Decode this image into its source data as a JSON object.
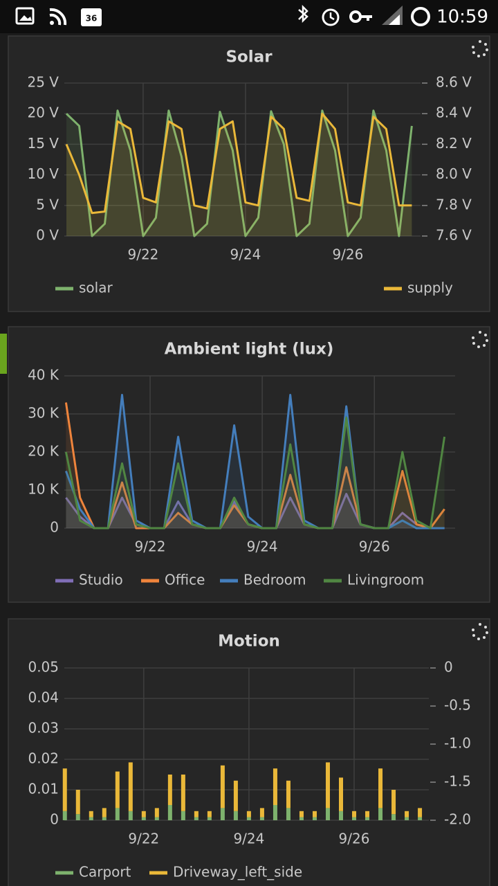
{
  "status_bar": {
    "badge": "36",
    "time": "10:59"
  },
  "chart_data": [
    {
      "type": "line",
      "title": "Solar",
      "x": [
        20.5,
        20.75,
        21,
        21.25,
        21.5,
        21.75,
        22,
        22.25,
        22.5,
        22.75,
        23,
        23.25,
        23.5,
        23.75,
        24,
        24.25,
        24.5,
        24.75,
        25,
        25.25,
        25.5,
        25.75,
        26,
        26.25,
        26.5,
        26.75,
        27,
        27.25
      ],
      "xlim": [
        20.46,
        27.42
      ],
      "xticks": [
        {
          "value": 22,
          "label": "9/22"
        },
        {
          "value": 24,
          "label": "9/24"
        },
        {
          "value": 26,
          "label": "9/26"
        }
      ],
      "ylim": [
        0,
        25
      ],
      "yticks": [
        {
          "value": 0,
          "label": "0 V"
        },
        {
          "value": 5,
          "label": "5 V"
        },
        {
          "value": 10,
          "label": "10 V"
        },
        {
          "value": 15,
          "label": "15 V"
        },
        {
          "value": 20,
          "label": "20 V"
        },
        {
          "value": 25,
          "label": "25 V"
        }
      ],
      "y2lim": [
        7.6,
        8.6
      ],
      "y2ticks": [
        {
          "value": 7.6,
          "label": "7.6 V"
        },
        {
          "value": 7.8,
          "label": "7.8 V"
        },
        {
          "value": 8.0,
          "label": "8.0 V"
        },
        {
          "value": 8.2,
          "label": "8.2 V"
        },
        {
          "value": 8.4,
          "label": "8.4 V"
        },
        {
          "value": 8.6,
          "label": "8.6 V"
        }
      ],
      "grid": true,
      "series": [
        {
          "name": "solar",
          "color": "#7eb26d",
          "values": [
            20,
            18,
            0,
            2,
            20.5,
            14,
            0,
            3,
            20.5,
            13,
            0,
            2,
            20.3,
            14,
            0,
            3,
            20.4,
            15,
            0,
            2,
            20.5,
            14,
            0,
            3,
            20.5,
            14,
            0,
            18
          ]
        },
        {
          "name": "supply",
          "color": "#eab839",
          "axis": "y2",
          "values": [
            8.2,
            8.0,
            7.75,
            7.76,
            8.35,
            8.3,
            7.85,
            7.82,
            8.35,
            8.3,
            7.8,
            7.78,
            8.3,
            8.35,
            7.82,
            7.8,
            8.38,
            8.3,
            7.85,
            7.83,
            8.4,
            8.3,
            7.82,
            7.8,
            8.38,
            8.3,
            7.8,
            7.8
          ]
        }
      ]
    },
    {
      "type": "line",
      "title": "Ambient light (lux)",
      "x": [
        20.5,
        20.75,
        21,
        21.25,
        21.5,
        21.75,
        22,
        22.25,
        22.5,
        22.75,
        23,
        23.25,
        23.5,
        23.75,
        24,
        24.25,
        24.5,
        24.75,
        25,
        25.25,
        25.5,
        25.75,
        26,
        26.25,
        26.5,
        26.75,
        27,
        27.25
      ],
      "xlim": [
        20.47,
        27.44
      ],
      "xticks": [
        {
          "value": 22,
          "label": "9/22"
        },
        {
          "value": 24,
          "label": "9/24"
        },
        {
          "value": 26,
          "label": "9/26"
        }
      ],
      "ylim": [
        0,
        40000
      ],
      "yticks": [
        0,
        {
          "value": 10000,
          "label": "10 K"
        },
        {
          "value": 20000,
          "label": "20 K"
        },
        {
          "value": 30000,
          "label": "30 K"
        },
        {
          "value": 40000,
          "label": "40 K"
        }
      ],
      "grid": true,
      "series": [
        {
          "name": "Studio",
          "color": "#806eb7",
          "values": [
            8000,
            3000,
            0,
            0,
            8000,
            1000,
            0,
            0,
            7000,
            1000,
            0,
            0,
            7000,
            1000,
            0,
            0,
            8000,
            1000,
            0,
            0,
            9000,
            1000,
            0,
            0,
            4000,
            1000,
            0,
            0
          ]
        },
        {
          "name": "Office",
          "color": "#ef843c",
          "values": [
            33000,
            8000,
            0,
            0,
            12000,
            0,
            0,
            0,
            4000,
            1000,
            0,
            0,
            6000,
            1000,
            0,
            0,
            14000,
            1000,
            0,
            0,
            16000,
            1000,
            0,
            0,
            15000,
            1000,
            0,
            5000
          ]
        },
        {
          "name": "Bedroom",
          "color": "#447ebc",
          "values": [
            15000,
            5000,
            0,
            0,
            35000,
            2000,
            0,
            0,
            24000,
            2000,
            0,
            0,
            27000,
            3000,
            0,
            0,
            35000,
            2000,
            0,
            0,
            32000,
            1000,
            0,
            0,
            2000,
            0,
            0,
            0
          ]
        },
        {
          "name": "Livingroom",
          "color": "#508642",
          "values": [
            20000,
            2000,
            0,
            0,
            17000,
            1000,
            0,
            0,
            17000,
            1000,
            0,
            0,
            8000,
            1000,
            0,
            0,
            22000,
            1000,
            0,
            0,
            29000,
            1000,
            0,
            0,
            20000,
            2000,
            0,
            24000
          ]
        }
      ]
    },
    {
      "type": "bar",
      "title": "Motion",
      "x": [
        20.5,
        20.75,
        21,
        21.25,
        21.5,
        21.75,
        22,
        22.25,
        22.5,
        22.75,
        23,
        23.25,
        23.5,
        23.75,
        24,
        24.25,
        24.5,
        24.75,
        25,
        25.25,
        25.5,
        25.75,
        26,
        26.25,
        26.5,
        26.75,
        27,
        27.25
      ],
      "xlim": [
        20.49,
        27.42
      ],
      "xticks": [
        {
          "value": 22,
          "label": "9/22"
        },
        {
          "value": 24,
          "label": "9/24"
        },
        {
          "value": 26,
          "label": "9/26"
        }
      ],
      "ylim": [
        0,
        0.05
      ],
      "yticks": [
        0,
        0.01,
        0.02,
        0.03,
        0.04,
        0.05
      ],
      "y2lim": [
        -2,
        0
      ],
      "y2ticks": [
        0,
        -0.5,
        {
          "value": -1,
          "label": "-1.0"
        },
        -1.5,
        {
          "value": -2,
          "label": "-2.0"
        }
      ],
      "grid": true,
      "series": [
        {
          "name": "Carport",
          "color": "#7eb26d",
          "values": [
            0.003,
            0.002,
            0.001,
            0.001,
            0.004,
            0.003,
            0.001,
            0.001,
            0.005,
            0.003,
            0.001,
            0.001,
            0.004,
            0.003,
            0.001,
            0.001,
            0.005,
            0.004,
            0.001,
            0.001,
            0.004,
            0.003,
            0.001,
            0.001,
            0.004,
            0.002,
            0.001,
            0.001
          ]
        },
        {
          "name": "Driveway_left_side",
          "color": "#eab839",
          "values": [
            0.014,
            0.008,
            0.002,
            0.003,
            0.012,
            0.016,
            0.002,
            0.003,
            0.01,
            0.012,
            0.002,
            0.002,
            0.014,
            0.01,
            0.002,
            0.003,
            0.012,
            0.009,
            0.002,
            0.002,
            0.015,
            0.011,
            0.002,
            0.002,
            0.013,
            0.008,
            0.002,
            0.003
          ]
        }
      ]
    }
  ]
}
